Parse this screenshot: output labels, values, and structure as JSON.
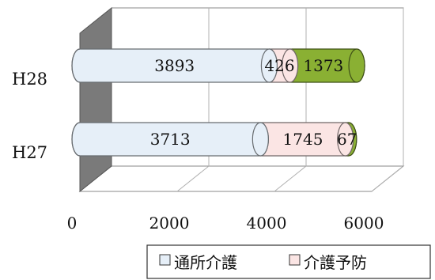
{
  "chart_data": {
    "type": "bar",
    "orientation": "horizontal",
    "stacked": true,
    "categories": [
      "H28",
      "H27"
    ],
    "series": [
      {
        "name": "通所介護",
        "values": [
          3893,
          3713
        ],
        "color": "#e6eff8"
      },
      {
        "name": "介護予防",
        "values": [
          426,
          1745
        ],
        "color": "#fbe5e4"
      },
      {
        "name": "",
        "values": [
          1373,
          67
        ],
        "color": "#8ab033"
      }
    ],
    "x_ticks": [
      "0",
      "2000",
      "4000",
      "6000"
    ],
    "xlim": [
      0,
      6000
    ],
    "grid": true,
    "legend_position": "bottom-right",
    "style": "3d-cylinder"
  }
}
